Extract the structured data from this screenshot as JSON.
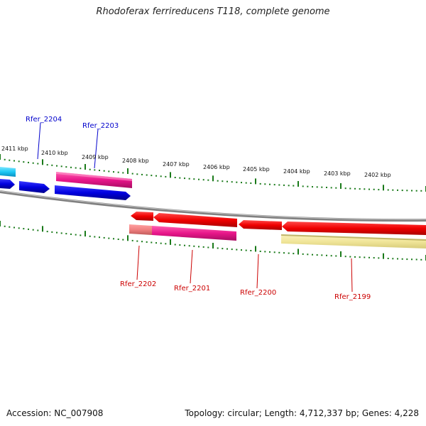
{
  "title": "Rhodoferax ferrireducens T118, complete genome",
  "footer": {
    "accession": "Accession: NC_007908",
    "info": "Topology: circular; Length: 4,712,337 bp; Genes: 4,228"
  },
  "scale_ticks": [
    "2411 kbp",
    "2410 kbp",
    "2409 kbp",
    "2408 kbp",
    "2407 kbp",
    "2406 kbp",
    "2405 kbp",
    "2404 kbp",
    "2403 kbp",
    "2402 kbp"
  ],
  "gene_labels": {
    "forward": [
      "Rfer_2204",
      "Rfer_2203"
    ],
    "reverse": [
      "Rfer_2202",
      "Rfer_2201",
      "Rfer_2200",
      "Rfer_2199"
    ]
  },
  "colors": {
    "forward_label": "#0000cc",
    "reverse_label": "#cc0000",
    "tick": "#1a7a1a",
    "backbone": "#7a7a7a"
  }
}
